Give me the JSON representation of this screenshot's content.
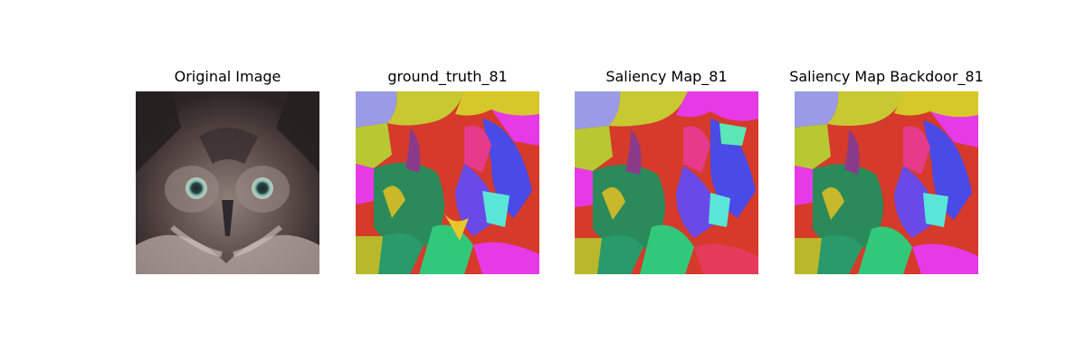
{
  "figure": {
    "panels": [
      {
        "title": "Original Image"
      },
      {
        "title": "ground_truth_81"
      },
      {
        "title": "Saliency Map_81"
      },
      {
        "title": "Saliency Map Backdoor_81"
      }
    ]
  }
}
